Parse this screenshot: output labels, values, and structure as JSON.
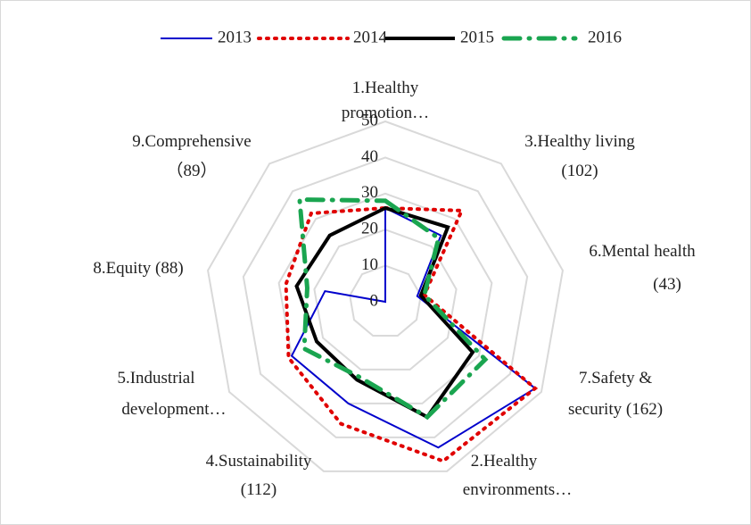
{
  "chart_data": {
    "type": "radar",
    "categories": [
      "1.Healthy\npromotion…",
      "3.Healthy living\n(102)",
      "6.Mental health\n(43)",
      "7.Safety &\nsecurity (162)",
      "2.Healthy\nenvironments…",
      "4.Sustainability\n(112)",
      "5.Industrial\ndevelopment…",
      "8.Equity (88)",
      "9.Comprehensive\n（89）"
    ],
    "series": [
      {
        "name": "2013",
        "color": "#0000cc",
        "values": [
          26,
          24,
          9,
          48,
          43,
          30,
          30,
          17,
          0
        ]
      },
      {
        "name": "2014",
        "color": "#e00000",
        "values": [
          26,
          33,
          11,
          48,
          47,
          36,
          31,
          28,
          32
        ]
      },
      {
        "name": "2015",
        "color": "#000000",
        "values": [
          26,
          27,
          10,
          28,
          34,
          23,
          22,
          25,
          24
        ]
      },
      {
        "name": "2016",
        "color": "#1aa550",
        "values": [
          28,
          23,
          11,
          32,
          34,
          22,
          26,
          22,
          37
        ]
      }
    ],
    "ylim": [
      0,
      50
    ],
    "yticks": [
      0,
      10,
      20,
      30,
      40,
      50
    ],
    "grid": true,
    "legend": "top"
  }
}
